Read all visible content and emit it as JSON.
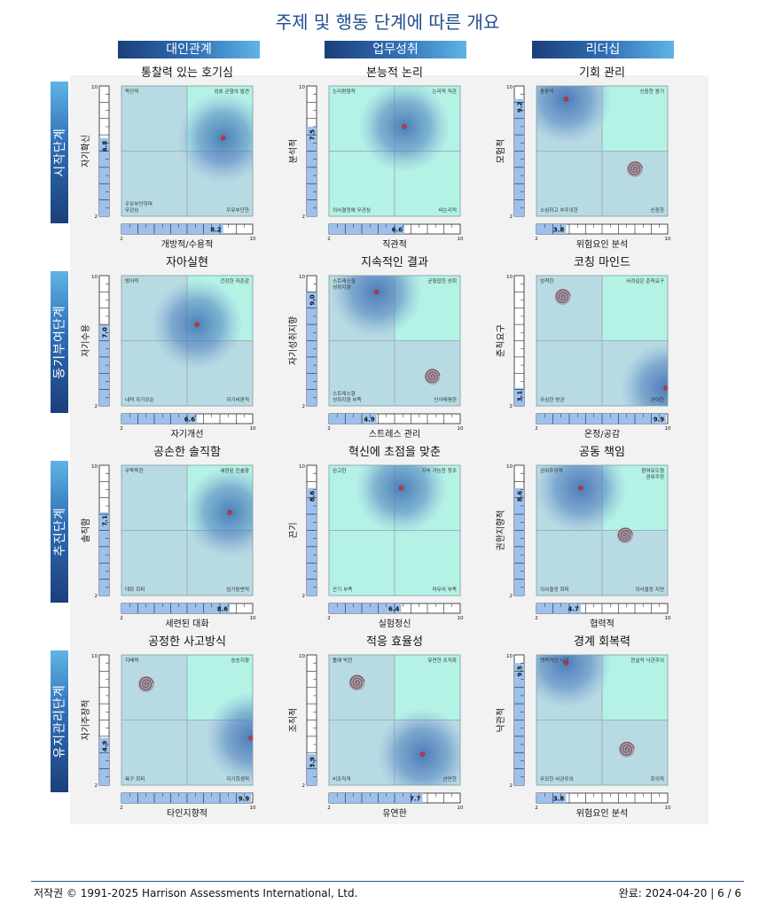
{
  "title": "주제 및 행동 단계에 따른 개요",
  "columns": [
    "대인관계",
    "업무성취",
    "리더십"
  ],
  "stages": [
    "시작단계",
    "동기부여단계",
    "추진단계",
    "유지관리단계"
  ],
  "colors": {
    "header_dark": "#1b3f7a",
    "header_light": "#5fb4e6",
    "quad_highlight": "#b4f2e6",
    "quad_base": "#b8dbe3",
    "bar_fill": "#9cc1ee",
    "dot": "#e03030"
  },
  "charts": [
    {
      "title": "통찰력 있는 호기심",
      "ylabel": "자기확신",
      "xlabel": "개방적/수용적",
      "y": 6.8,
      "x": 8.2,
      "hi": "TR",
      "blob": "blue",
      "spiral": null,
      "q": {
        "tl": "독단적",
        "tr": "성호 균형의 발견",
        "bl": "우유부단하며\n무관심",
        "br": "우유부단한"
      }
    },
    {
      "title": "본능적 논리",
      "ylabel": "분석적",
      "xlabel": "직관적",
      "y": 7.5,
      "x": 6.6,
      "hi": "ALL",
      "blob": "blue",
      "spiral": null,
      "q": {
        "tl": "논리편향적",
        "tr": "논리적 직관",
        "bl": "의사결정에 무관심",
        "br": "비논리적"
      }
    },
    {
      "title": "기회 관리",
      "ylabel": "모험적",
      "xlabel": "위험요인 분석",
      "y": 9.2,
      "x": 3.8,
      "hi": "TR",
      "blob": "blue",
      "spiral": [
        8.0,
        4.9
      ],
      "q": {
        "tl": "충동적",
        "tr": "신중한 용기",
        "bl": "소심하고 부주의한",
        "br": "신중한"
      }
    },
    {
      "title": "자아실현",
      "ylabel": "자기수용",
      "xlabel": "자기개선",
      "y": 7.0,
      "x": 6.6,
      "hi": "TR",
      "blob": "blue",
      "spiral": null,
      "q": {
        "tl": "방어적",
        "tr": "건강한 자존감",
        "bl": "내적 자기모순",
        "br": "자기비판적"
      }
    },
    {
      "title": "지속적인 결과",
      "ylabel": "자기성취지향",
      "xlabel": "스트레스 관리",
      "y": 9.0,
      "x": 4.9,
      "hi": "TR",
      "blob": "blue",
      "spiral": [
        8.3,
        3.8
      ],
      "q": {
        "tl": "스트레스형\n성취지향",
        "tr": "균형잡힌 성취",
        "bl": "스트레스형\n성취지향 부족",
        "br": "안사태평한"
      }
    },
    {
      "title": "코칭 마인드",
      "ylabel": "준칙요구",
      "xlabel": "온정/공감",
      "y": 3.1,
      "x": 9.9,
      "hi": "TR",
      "blob": "blue",
      "spiral": [
        3.6,
        8.7
      ],
      "q": {
        "tl": "엄격한",
        "tr": "사려깊은 준칙요구",
        "bl": "무심한 방관",
        "br": "관대한"
      }
    },
    {
      "title": "공손한 솔직함",
      "ylabel": "솔직함",
      "xlabel": "세련된 대화",
      "y": 7.1,
      "x": 8.6,
      "hi": "TR",
      "blob": "blue",
      "spiral": null,
      "q": {
        "tl": "무뚝뚝한",
        "tr": "세련된 진솔함",
        "bl": "대화 회피",
        "br": "임기응변적"
      }
    },
    {
      "title": "혁신에 초점을 맞춘",
      "ylabel": "끈기",
      "xlabel": "실험정신",
      "y": 8.6,
      "x": 6.4,
      "hi": "ALL",
      "blob": "blue",
      "spiral": null,
      "q": {
        "tl": "완고한",
        "tr": "지속 가능한 창조",
        "bl": "끈기 부족",
        "br": "마무리 부족"
      }
    },
    {
      "title": "공동 책임",
      "ylabel": "권한지향적",
      "xlabel": "협력적",
      "y": 8.6,
      "x": 4.7,
      "hi": "TR",
      "blob": "blue",
      "spiral": [
        7.4,
        5.7
      ],
      "q": {
        "tl": "권위주의적",
        "tr": "참여유도형\n권위주정",
        "bl": "의사결정 회피",
        "br": "의사결정 지연"
      }
    },
    {
      "title": "공정한 사고방식",
      "ylabel": "자기주장적",
      "xlabel": "타인지향적",
      "y": 4.9,
      "x": 9.9,
      "hi": "TR",
      "blob": "blue",
      "spiral": [
        3.5,
        8.2
      ],
      "q": {
        "tl": "지배적",
        "tr": "승승지향",
        "bl": "욕구 회피",
        "br": "자기희생적"
      }
    },
    {
      "title": "적응 효율성",
      "ylabel": "조직적",
      "xlabel": "유연한",
      "y": 3.9,
      "x": 7.7,
      "hi": "TR",
      "blob": "blue",
      "spiral": [
        3.7,
        8.3
      ],
      "q": {
        "tl": "틀에 박힌",
        "tr": "유연한 조직화",
        "bl": "비조직적",
        "br": "산만한"
      }
    },
    {
      "title": "경계 회복력",
      "ylabel": "낙관적",
      "xlabel": "위험요인 분석",
      "y": 9.5,
      "x": 3.8,
      "hi": "TR",
      "blob": "blue",
      "spiral": [
        7.5,
        4.2
      ],
      "q": {
        "tl": "맹목적인 낙관",
        "tr": "현실적 낙관주의",
        "bl": "무모한 비관주의",
        "br": "회의적"
      }
    }
  ],
  "footer": {
    "copyright": "저작권 © 1991-2025 Harrison Assessments International, Ltd.",
    "page": "완료: 2024-04-20 | 6 / 6"
  }
}
